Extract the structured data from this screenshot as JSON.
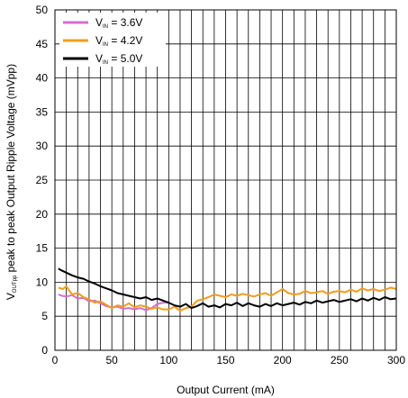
{
  "chart_data": {
    "type": "line",
    "title": "",
    "xlabel": "Output Current (mA)",
    "ylabel": {
      "prefix": "V",
      "subscript": "OUTpp",
      "rest": " peak to peak Output Ripple Voltage (mVpp)"
    },
    "xlim": [
      0,
      300
    ],
    "ylim": [
      0,
      50
    ],
    "xticks": [
      0,
      50,
      100,
      150,
      200,
      250,
      300
    ],
    "yticks": [
      0,
      5,
      10,
      15,
      20,
      25,
      30,
      35,
      40,
      45,
      50
    ],
    "grid": {
      "x_step": 10,
      "y_step": 5
    },
    "legend_position": "top-left",
    "series": [
      {
        "name_main": "V",
        "name_sub": "IN",
        "name_rest": " = 3.6V",
        "color": "#d26fd2",
        "x": [
          3,
          6,
          10,
          15,
          20,
          25,
          30,
          35,
          40,
          45,
          50,
          55,
          60,
          65,
          70,
          75,
          80,
          85,
          90,
          95,
          100
        ],
        "y": [
          8.2,
          8.0,
          7.9,
          8.1,
          7.6,
          7.7,
          7.2,
          7.3,
          6.9,
          6.5,
          6.3,
          6.4,
          6.1,
          6.2,
          6.0,
          6.2,
          5.9,
          6.2,
          6.8,
          7.0,
          7.0
        ]
      },
      {
        "name_main": "V",
        "name_sub": "IN",
        "name_rest": " = 4.2V",
        "color": "#f39c1e",
        "x": [
          3,
          7,
          10,
          15,
          20,
          25,
          30,
          35,
          40,
          45,
          50,
          55,
          60,
          65,
          70,
          75,
          80,
          85,
          90,
          95,
          100,
          105,
          110,
          115,
          120,
          125,
          130,
          135,
          140,
          145,
          150,
          155,
          160,
          165,
          170,
          175,
          180,
          185,
          190,
          195,
          200,
          205,
          210,
          215,
          220,
          225,
          230,
          235,
          240,
          245,
          250,
          255,
          260,
          265,
          270,
          275,
          280,
          285,
          290,
          295,
          300
        ],
        "y": [
          9.2,
          9.0,
          9.4,
          8.2,
          8.4,
          7.8,
          7.5,
          7.0,
          7.2,
          6.7,
          6.2,
          6.6,
          6.4,
          6.9,
          6.3,
          6.6,
          6.4,
          6.1,
          6.3,
          6.0,
          6.0,
          6.4,
          5.8,
          6.2,
          6.4,
          7.3,
          7.5,
          7.8,
          8.2,
          8.0,
          7.8,
          8.2,
          8.0,
          8.3,
          8.1,
          7.9,
          8.2,
          8.4,
          8.0,
          8.5,
          9.0,
          8.4,
          8.2,
          8.3,
          8.7,
          8.4,
          8.5,
          8.7,
          8.3,
          8.6,
          8.7,
          8.5,
          8.9,
          8.6,
          9.1,
          8.8,
          9.0,
          8.7,
          8.9,
          9.2,
          9.0
        ]
      },
      {
        "name_main": "V",
        "name_sub": "IN",
        "name_rest": " = 5.0V",
        "color": "#000000",
        "x": [
          3,
          5,
          10,
          15,
          20,
          25,
          30,
          35,
          40,
          45,
          50,
          55,
          60,
          65,
          70,
          75,
          80,
          85,
          90,
          95,
          100,
          105,
          110,
          115,
          120,
          125,
          130,
          135,
          140,
          145,
          150,
          155,
          160,
          165,
          170,
          175,
          180,
          185,
          190,
          195,
          200,
          205,
          210,
          215,
          220,
          225,
          230,
          235,
          240,
          245,
          250,
          255,
          260,
          265,
          270,
          275,
          280,
          285,
          290,
          295,
          300
        ],
        "y": [
          12.0,
          11.8,
          11.4,
          11.0,
          10.7,
          10.5,
          10.1,
          9.8,
          9.4,
          9.1,
          8.8,
          8.4,
          8.2,
          8.0,
          7.8,
          7.6,
          7.8,
          7.4,
          7.6,
          7.3,
          7.0,
          6.6,
          6.4,
          6.8,
          6.2,
          6.5,
          6.9,
          6.4,
          6.6,
          6.3,
          6.8,
          6.6,
          7.0,
          6.5,
          6.9,
          6.6,
          6.4,
          6.8,
          6.5,
          6.9,
          6.6,
          6.8,
          7.0,
          6.7,
          7.1,
          6.9,
          7.3,
          7.0,
          7.2,
          7.4,
          7.1,
          7.3,
          7.5,
          7.2,
          7.6,
          7.3,
          7.7,
          7.4,
          7.8,
          7.5,
          7.6
        ]
      }
    ]
  }
}
